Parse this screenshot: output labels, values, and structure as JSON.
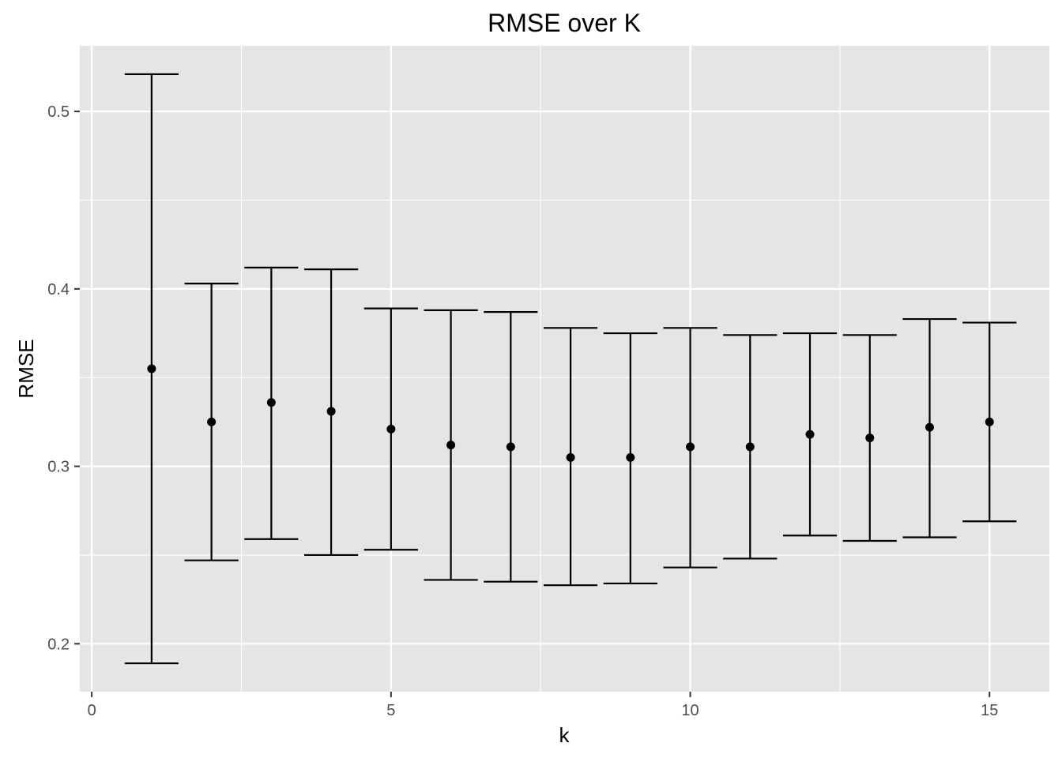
{
  "chart_data": {
    "type": "scatter",
    "title": "RMSE over K",
    "xlabel": "k",
    "ylabel": "RMSE",
    "xlim": [
      -0.2,
      16.0
    ],
    "ylim": [
      0.173,
      0.537
    ],
    "x_ticks": [
      0,
      5,
      10,
      15
    ],
    "y_ticks": [
      0.2,
      0.3,
      0.4,
      0.5
    ],
    "x_tick_labels": [
      "0",
      "5",
      "10",
      "15"
    ],
    "y_tick_labels": [
      "0.2",
      "0.3",
      "0.4",
      "0.5"
    ],
    "grid": true,
    "legend": "none",
    "points": [
      {
        "k": 1,
        "rmse": 0.355,
        "lower": 0.189,
        "upper": 0.521
      },
      {
        "k": 2,
        "rmse": 0.325,
        "lower": 0.247,
        "upper": 0.403
      },
      {
        "k": 3,
        "rmse": 0.336,
        "lower": 0.259,
        "upper": 0.412
      },
      {
        "k": 4,
        "rmse": 0.331,
        "lower": 0.25,
        "upper": 0.411
      },
      {
        "k": 5,
        "rmse": 0.321,
        "lower": 0.253,
        "upper": 0.389
      },
      {
        "k": 6,
        "rmse": 0.312,
        "lower": 0.236,
        "upper": 0.388
      },
      {
        "k": 7,
        "rmse": 0.311,
        "lower": 0.235,
        "upper": 0.387
      },
      {
        "k": 8,
        "rmse": 0.305,
        "lower": 0.233,
        "upper": 0.378
      },
      {
        "k": 9,
        "rmse": 0.305,
        "lower": 0.234,
        "upper": 0.375
      },
      {
        "k": 10,
        "rmse": 0.311,
        "lower": 0.243,
        "upper": 0.378
      },
      {
        "k": 11,
        "rmse": 0.311,
        "lower": 0.248,
        "upper": 0.374
      },
      {
        "k": 12,
        "rmse": 0.318,
        "lower": 0.261,
        "upper": 0.375
      },
      {
        "k": 13,
        "rmse": 0.316,
        "lower": 0.258,
        "upper": 0.374
      },
      {
        "k": 14,
        "rmse": 0.322,
        "lower": 0.26,
        "upper": 0.383
      },
      {
        "k": 15,
        "rmse": 0.325,
        "lower": 0.269,
        "upper": 0.381
      }
    ],
    "colors": {
      "panel_background": "#e5e5e5",
      "grid": "#ffffff",
      "marks": "#000000",
      "tick_text": "#4d4d4d"
    }
  }
}
